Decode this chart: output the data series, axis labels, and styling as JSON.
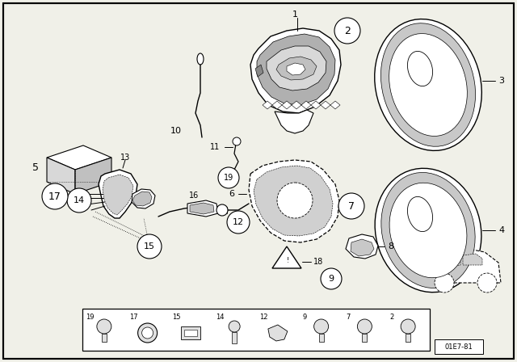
{
  "fig_width": 6.4,
  "fig_height": 4.48,
  "dpi": 100,
  "bg_color": "#f0f0e8",
  "diagram_number": "01E7-81",
  "footer_parts": [
    19,
    17,
    15,
    14,
    12,
    9,
    7,
    2
  ]
}
